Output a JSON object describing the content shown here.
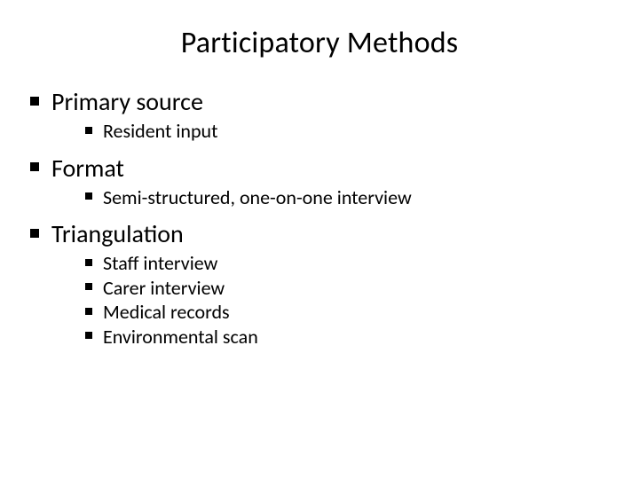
{
  "slide": {
    "title": "Participatory Methods",
    "title_fontsize": 34,
    "background_color": "#ffffff",
    "text_color": "#000000",
    "bullet_color": "#000000",
    "font_family": "Calibri",
    "bullets": [
      {
        "label": "Primary source",
        "fontsize": 28,
        "children": [
          {
            "label": "Resident input",
            "fontsize": 22
          }
        ]
      },
      {
        "label": "Format",
        "fontsize": 28,
        "children": [
          {
            "label": "Semi-structured, one-on-one interview",
            "fontsize": 22
          }
        ]
      },
      {
        "label": "Triangulation",
        "fontsize": 28,
        "children": [
          {
            "label": "Staff interview",
            "fontsize": 22
          },
          {
            "label": "Carer interview",
            "fontsize": 22
          },
          {
            "label": "Medical records",
            "fontsize": 22
          },
          {
            "label": "Environmental scan",
            "fontsize": 22
          }
        ]
      }
    ]
  }
}
